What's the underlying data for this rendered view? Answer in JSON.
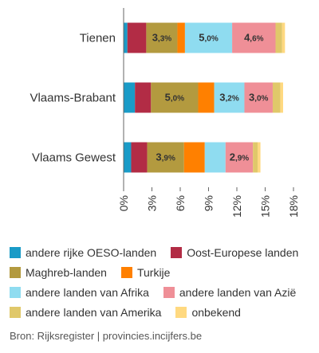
{
  "chart_data": {
    "type": "stacked-barh",
    "categories": [
      "Tienen",
      "Vlaams-Brabant",
      "Vlaams Gewest"
    ],
    "series": [
      {
        "name": "andere rijke OESO-landen",
        "color": "#1a9bc7",
        "values": [
          0.4,
          1.2,
          0.8
        ],
        "value_labels": [
          null,
          null,
          null
        ]
      },
      {
        "name": "Oost-Europese landen",
        "color": "#b22c45",
        "values": [
          2.0,
          1.7,
          1.7
        ],
        "value_labels": [
          null,
          null,
          null
        ]
      },
      {
        "name": "Maghreb-landen",
        "color": "#b39a3f",
        "values": [
          3.3,
          5.0,
          3.9
        ],
        "value_labels": [
          "3,3%",
          "5,0%",
          "3,9%"
        ]
      },
      {
        "name": "Turkije",
        "color": "#ff8000",
        "values": [
          0.8,
          1.7,
          2.2
        ],
        "value_labels": [
          null,
          null,
          null
        ]
      },
      {
        "name": "andere landen van Afrika",
        "color": "#8fdcf0",
        "values": [
          5.0,
          3.2,
          2.2
        ],
        "value_labels": [
          "5,0%",
          "3,2%",
          null
        ]
      },
      {
        "name": "andere landen van Azië",
        "color": "#ef8f97",
        "values": [
          4.6,
          3.0,
          2.9
        ],
        "value_labels": [
          "4,6%",
          "3,0%",
          "2,9%"
        ]
      },
      {
        "name": "andere landen van Amerika",
        "color": "#e0c86a",
        "values": [
          0.7,
          0.8,
          0.5
        ],
        "value_labels": [
          null,
          null,
          null
        ]
      },
      {
        "name": "onbekend",
        "color": "#ffd980",
        "values": [
          0.3,
          0.3,
          0.3
        ],
        "value_labels": [
          null,
          null,
          null
        ]
      }
    ],
    "xlim": [
      0,
      18
    ],
    "xticks": [
      {
        "value": 0,
        "label": "0%"
      },
      {
        "value": 3,
        "label": "3%"
      },
      {
        "value": 6,
        "label": "6%"
      },
      {
        "value": 9,
        "label": "9%"
      },
      {
        "value": 12,
        "label": "12%"
      },
      {
        "value": 15,
        "label": "15%"
      },
      {
        "value": 18,
        "label": "18%"
      }
    ],
    "source": "Bron: Rijksregister | provincies.incijfers.be"
  }
}
